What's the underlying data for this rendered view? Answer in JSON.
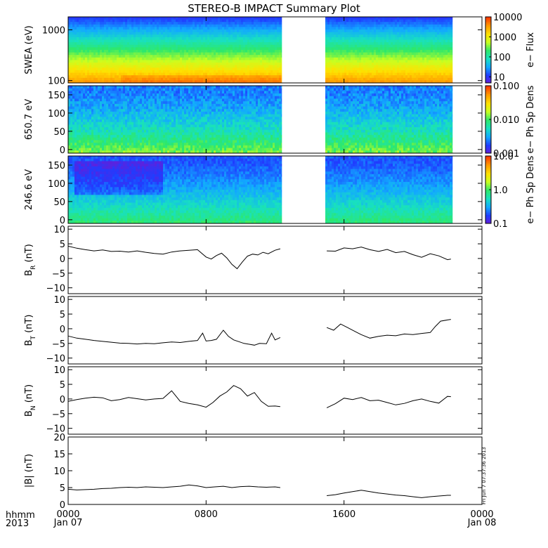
{
  "title": "STEREO-B IMPACT Summary Plot",
  "time_axis": {
    "corner_top": "hhmm",
    "corner_bottom": "2013",
    "ticks": [
      {
        "hour": 0,
        "label": "0000",
        "sub": "Jan 07"
      },
      {
        "hour": 8,
        "label": "0800",
        "sub": ""
      },
      {
        "hour": 16,
        "label": "1600",
        "sub": ""
      },
      {
        "hour": 24,
        "label": "0000",
        "sub": "Jan 08"
      }
    ],
    "data_gaps_hours": [
      [
        12.4,
        14.9
      ],
      [
        22.3,
        24
      ]
    ]
  },
  "timestamp": "Fri Jun  7 07:37:36 2013",
  "chart_data": [
    {
      "type": "heatmap",
      "id": "swea",
      "ylabel": "SWEA (eV)",
      "yscale": "log",
      "ylim": [
        90,
        1800
      ],
      "yticks": [
        {
          "v": 100,
          "label": "100"
        },
        {
          "v": 1000,
          "label": "1000"
        }
      ],
      "colorbar": {
        "label": "e− Flux",
        "scale": "log",
        "range": [
          5,
          10000
        ],
        "ticks": [
          {
            "v": 10,
            "label": "10"
          },
          {
            "v": 100,
            "label": "100"
          },
          {
            "v": 1000,
            "label": "1000"
          },
          {
            "v": 10000,
            "label": "10000"
          }
        ]
      },
      "colormap": [
        "#6a1bd6",
        "#1f3dff",
        "#12a8ff",
        "#18e0c0",
        "#2ee86a",
        "#c8ff20",
        "#ffe000",
        "#ff9a00",
        "#ff3a00"
      ],
      "description_rows": "color level increases toward low energies"
    },
    {
      "type": "heatmap",
      "id": "pad650",
      "ylabel": "650.7 eV",
      "ylim": [
        -10,
        175
      ],
      "yticks": [
        {
          "v": 0,
          "label": "0"
        },
        {
          "v": 50,
          "label": "50"
        },
        {
          "v": 100,
          "label": "100"
        },
        {
          "v": 150,
          "label": "150"
        }
      ],
      "colorbar": {
        "label": "e− Ph Sp Dens",
        "scale": "log",
        "range": [
          0.001,
          0.1
        ],
        "ticks": [
          {
            "v": 0.001,
            "label": "0.001"
          },
          {
            "v": 0.01,
            "label": "0.010"
          },
          {
            "v": 0.1,
            "label": "0.100"
          }
        ]
      },
      "colormap": [
        "#6a1bd6",
        "#1f3dff",
        "#12a8ff",
        "#18e0c0",
        "#2ee86a",
        "#c8ff20",
        "#ffe000",
        "#ff9a00",
        "#ff3a00"
      ]
    },
    {
      "type": "heatmap",
      "id": "pad246",
      "ylabel": "246.6 eV",
      "ylim": [
        -10,
        175
      ],
      "yticks": [
        {
          "v": 0,
          "label": "0"
        },
        {
          "v": 50,
          "label": "50"
        },
        {
          "v": 100,
          "label": "100"
        },
        {
          "v": 150,
          "label": "150"
        }
      ],
      "colorbar": {
        "label": "e− Ph Sp Dens",
        "scale": "log",
        "range": [
          0.1,
          10
        ],
        "ticks": [
          {
            "v": 0.1,
            "label": "0.1"
          },
          {
            "v": 1,
            "label": "1.0"
          },
          {
            "v": 10,
            "label": "10.0"
          }
        ]
      },
      "colormap": [
        "#6a1bd6",
        "#1f3dff",
        "#12a8ff",
        "#18e0c0",
        "#2ee86a",
        "#c8ff20",
        "#ffe000",
        "#ff9a00",
        "#ff3a00"
      ]
    },
    {
      "type": "line",
      "id": "br",
      "ylabel": "B",
      "ylabel_sub": "R",
      "ylabel_unit": " (nT)",
      "ylim": [
        -12,
        11
      ],
      "yticks": [
        {
          "v": -10,
          "label": "−10"
        },
        {
          "v": -5,
          "label": "−5"
        },
        {
          "v": 0,
          "label": "0"
        },
        {
          "v": 5,
          "label": "5"
        },
        {
          "v": 10,
          "label": "10"
        }
      ],
      "x": [
        0.0,
        0.5,
        1.0,
        1.5,
        2.0,
        2.5,
        3.0,
        3.5,
        4.0,
        4.5,
        5.0,
        5.5,
        6.0,
        6.5,
        7.0,
        7.5,
        8.0,
        8.3,
        8.6,
        8.9,
        9.2,
        9.5,
        9.8,
        10.1,
        10.4,
        10.7,
        11.0,
        11.3,
        11.6,
        12.0,
        12.3,
        null,
        15.0,
        15.5,
        16.0,
        16.5,
        17.0,
        17.5,
        18.0,
        18.5,
        19.0,
        19.5,
        20.0,
        20.5,
        21.0,
        21.5,
        22.0,
        22.2
      ],
      "values": [
        4.2,
        3.5,
        3.0,
        2.6,
        2.9,
        2.4,
        2.5,
        2.2,
        2.6,
        2.1,
        1.7,
        1.5,
        2.2,
        2.6,
        2.8,
        3.0,
        0.5,
        -0.2,
        1.0,
        1.8,
        0.2,
        -2.0,
        -3.5,
        -1.2,
        0.8,
        1.5,
        1.2,
        2.1,
        1.6,
        2.8,
        3.3,
        null,
        2.6,
        2.5,
        3.6,
        3.3,
        3.9,
        3.0,
        2.4,
        3.1,
        2.0,
        2.4,
        1.3,
        0.4,
        1.6,
        0.9,
        -0.4,
        -0.2
      ]
    },
    {
      "type": "line",
      "id": "bt",
      "ylabel": "B",
      "ylabel_sub": "T",
      "ylabel_unit": " (nT)",
      "ylim": [
        -12,
        11
      ],
      "yticks": [
        {
          "v": -10,
          "label": "−10"
        },
        {
          "v": -5,
          "label": "−5"
        },
        {
          "v": 0,
          "label": "0"
        },
        {
          "v": 5,
          "label": "5"
        },
        {
          "v": 10,
          "label": "10"
        }
      ],
      "x": [
        0.0,
        0.5,
        1.0,
        1.5,
        2.0,
        2.5,
        3.0,
        3.5,
        4.0,
        4.5,
        5.0,
        5.5,
        6.0,
        6.5,
        7.0,
        7.5,
        7.8,
        8.0,
        8.3,
        8.6,
        9.0,
        9.3,
        9.6,
        9.9,
        10.2,
        10.5,
        10.8,
        11.1,
        11.5,
        11.8,
        12.0,
        12.3,
        null,
        15.0,
        15.4,
        15.8,
        16.2,
        16.6,
        17.0,
        17.5,
        18.0,
        18.5,
        19.0,
        19.5,
        20.0,
        20.5,
        21.0,
        21.3,
        21.6,
        22.0,
        22.2
      ],
      "values": [
        -2.5,
        -3.2,
        -3.6,
        -4.0,
        -4.3,
        -4.6,
        -4.9,
        -5.0,
        -5.2,
        -5.0,
        -5.1,
        -4.8,
        -4.5,
        -4.7,
        -4.3,
        -4.0,
        -1.5,
        -4.2,
        -4.0,
        -3.6,
        -0.5,
        -2.6,
        -3.8,
        -4.4,
        -5.0,
        -5.3,
        -5.6,
        -5.0,
        -5.1,
        -1.5,
        -3.8,
        -3.0,
        null,
        0.4,
        -0.5,
        1.6,
        0.4,
        -0.8,
        -2.0,
        -3.2,
        -2.6,
        -2.2,
        -2.4,
        -1.8,
        -2.0,
        -1.6,
        -1.3,
        0.8,
        2.6,
        3.0,
        3.2
      ]
    },
    {
      "type": "line",
      "id": "bn",
      "ylabel": "B",
      "ylabel_sub": "N",
      "ylabel_unit": " (nT)",
      "ylim": [
        -12,
        11
      ],
      "yticks": [
        {
          "v": -10,
          "label": "−10"
        },
        {
          "v": -5,
          "label": "−5"
        },
        {
          "v": 0,
          "label": "0"
        },
        {
          "v": 5,
          "label": "5"
        },
        {
          "v": 10,
          "label": "10"
        }
      ],
      "x": [
        0.0,
        0.5,
        1.0,
        1.5,
        2.0,
        2.5,
        3.0,
        3.5,
        4.0,
        4.5,
        5.0,
        5.5,
        6.0,
        6.5,
        7.0,
        7.5,
        8.0,
        8.4,
        8.8,
        9.2,
        9.6,
        10.0,
        10.4,
        10.8,
        11.2,
        11.6,
        12.0,
        12.3,
        null,
        15.0,
        15.5,
        16.0,
        16.5,
        17.0,
        17.5,
        18.0,
        18.5,
        19.0,
        19.5,
        20.0,
        20.5,
        21.0,
        21.5,
        22.0,
        22.2
      ],
      "values": [
        -0.8,
        -0.2,
        0.3,
        0.6,
        0.4,
        -0.6,
        -0.2,
        0.5,
        0.1,
        -0.3,
        0.0,
        0.2,
        2.8,
        -0.8,
        -1.5,
        -2.0,
        -2.8,
        -1.2,
        1.0,
        2.4,
        4.6,
        3.5,
        1.0,
        2.2,
        -0.8,
        -2.5,
        -2.4,
        -2.6,
        null,
        -3.0,
        -1.6,
        0.3,
        -0.2,
        0.5,
        -0.6,
        -0.4,
        -1.2,
        -2.0,
        -1.5,
        -0.6,
        0.0,
        -0.8,
        -1.4,
        0.9,
        0.8
      ]
    },
    {
      "type": "line",
      "id": "bmag",
      "ylabel": "|B| (nT)",
      "ylim": [
        0,
        20
      ],
      "yticks": [
        {
          "v": 0,
          "label": "0"
        },
        {
          "v": 5,
          "label": "5"
        },
        {
          "v": 10,
          "label": "10"
        },
        {
          "v": 15,
          "label": "15"
        },
        {
          "v": 20,
          "label": "20"
        }
      ],
      "x": [
        0.0,
        0.5,
        1.0,
        1.5,
        2.0,
        2.5,
        3.0,
        3.5,
        4.0,
        4.5,
        5.0,
        5.5,
        6.0,
        6.5,
        7.0,
        7.5,
        8.0,
        8.5,
        9.0,
        9.5,
        10.0,
        10.5,
        11.0,
        11.5,
        12.0,
        12.3,
        null,
        15.0,
        15.5,
        16.0,
        16.5,
        17.0,
        17.5,
        18.0,
        18.5,
        19.0,
        19.5,
        20.0,
        20.5,
        21.0,
        21.5,
        22.0,
        22.2
      ],
      "values": [
        4.5,
        4.3,
        4.4,
        4.5,
        4.7,
        4.8,
        5.0,
        5.1,
        5.0,
        5.2,
        5.1,
        5.0,
        5.2,
        5.4,
        5.8,
        5.5,
        5.0,
        5.2,
        5.4,
        5.0,
        5.3,
        5.4,
        5.2,
        5.1,
        5.2,
        5.0,
        null,
        2.6,
        2.9,
        3.4,
        3.8,
        4.2,
        3.8,
        3.4,
        3.1,
        2.8,
        2.6,
        2.3,
        2.0,
        2.3,
        2.5,
        2.7,
        2.7
      ]
    }
  ]
}
